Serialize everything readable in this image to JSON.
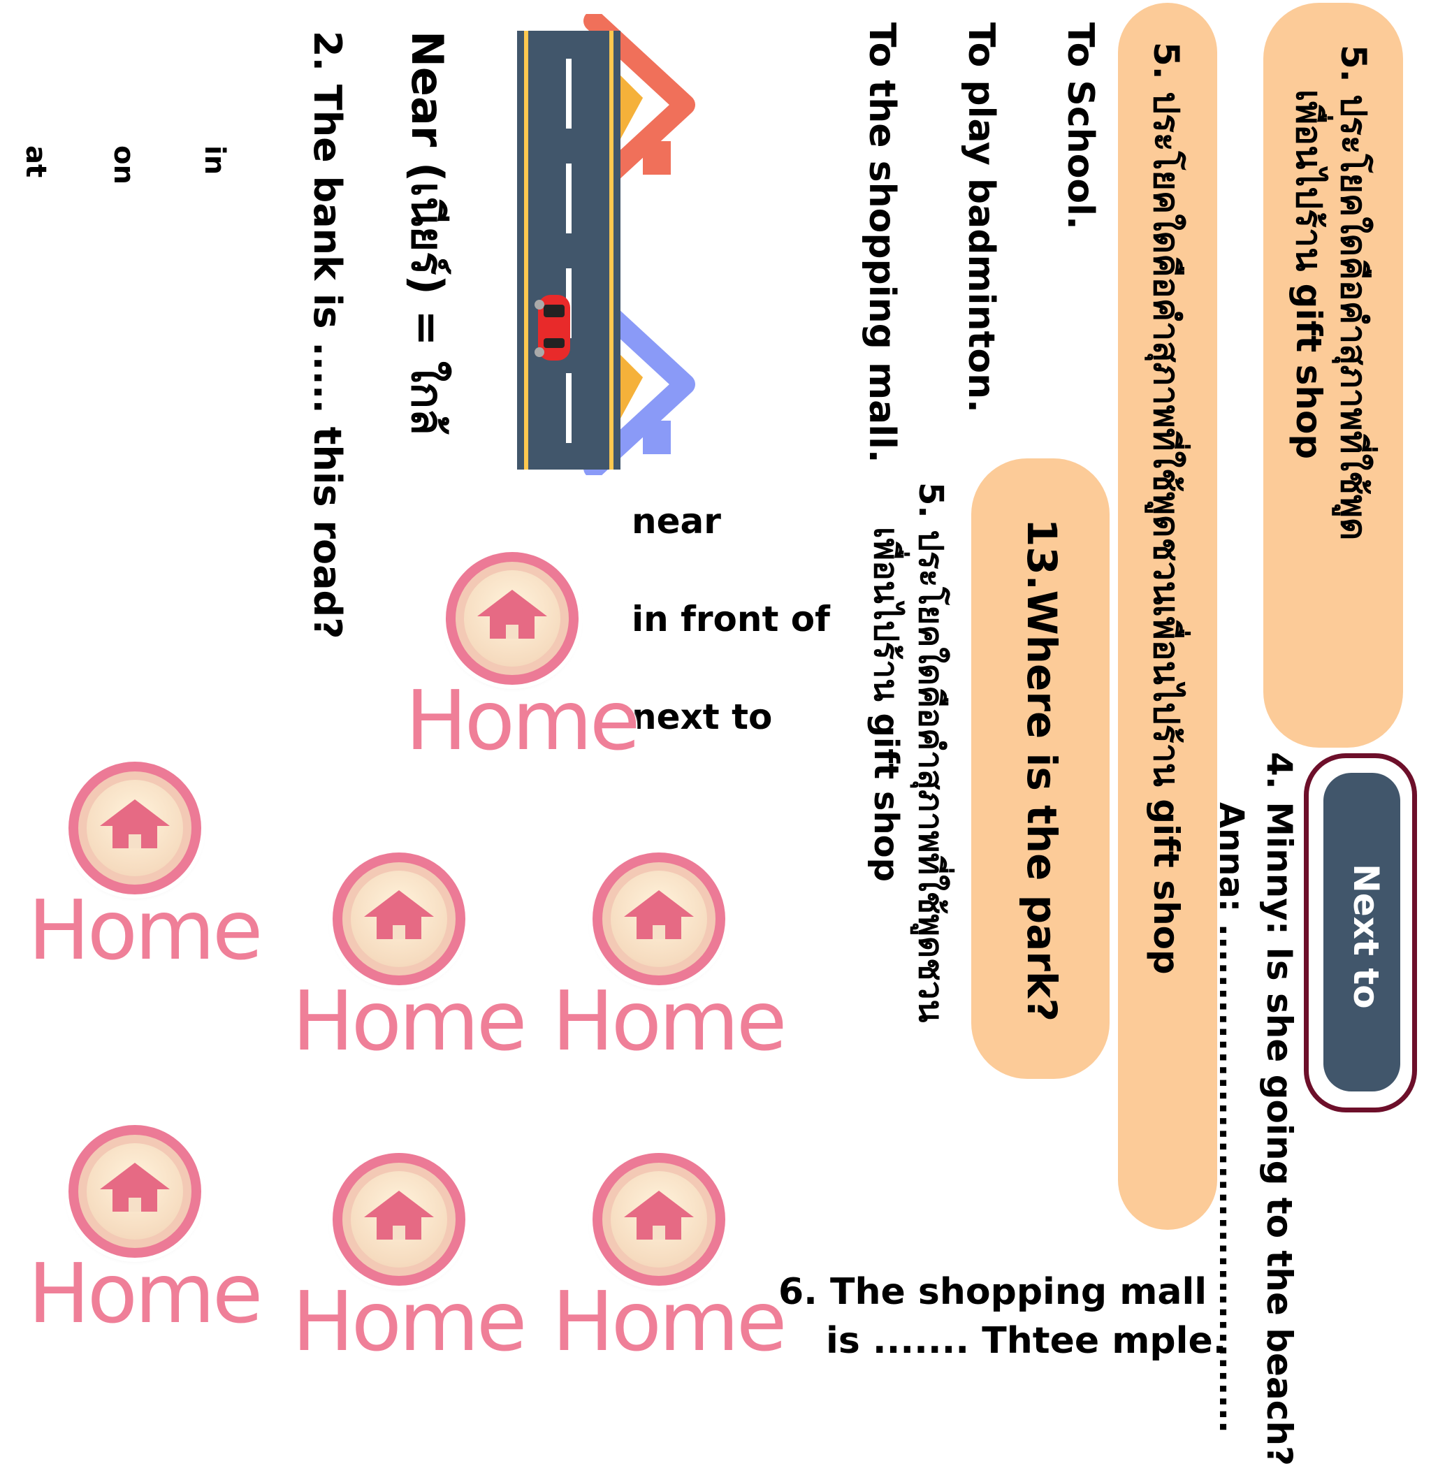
{
  "cards": {
    "card1": {
      "line1": "5. ประโยคใดคือคำสุภาพที่ใช้พูด",
      "line2": "เพื่อนไปร้าน gift shop"
    },
    "card2": {
      "line1": "5. ประโยคใดคือคำสุภาพที่ใช้พูดชวนเพื่อนไปร้าน gift shop"
    },
    "card3": {
      "line1": "13.Where is the park?"
    }
  },
  "question5b": {
    "line1": "5. ประโยคใดคือคำสุภาพที่ใช้พูดชวน",
    "line2": "เพื่อนไปร้าน gift shop"
  },
  "answers": [
    "To School.",
    "To play badminton.",
    "To the shopping mall."
  ],
  "near_definition": "Near (เนียร์) = ใกล้",
  "question2": "2. The bank is ..... this road?",
  "question4": {
    "line1": "4. Minny: Is she going to the beach?",
    "line2": "Anna: ........................................"
  },
  "next_to_button": "Next to",
  "preposition_options": [
    "near",
    "in front of",
    "next to"
  ],
  "small_options": [
    "in",
    "on",
    "at"
  ],
  "question6": {
    "line1": "6. The shopping mall",
    "line2": "is ....... Thtee mple."
  },
  "home_label": "Home",
  "colors": {
    "pill": "#fccb98",
    "button": "#41566b",
    "button_border": "#6d0f2a",
    "home_pink": "#ef7f98",
    "road": "#41566b"
  }
}
